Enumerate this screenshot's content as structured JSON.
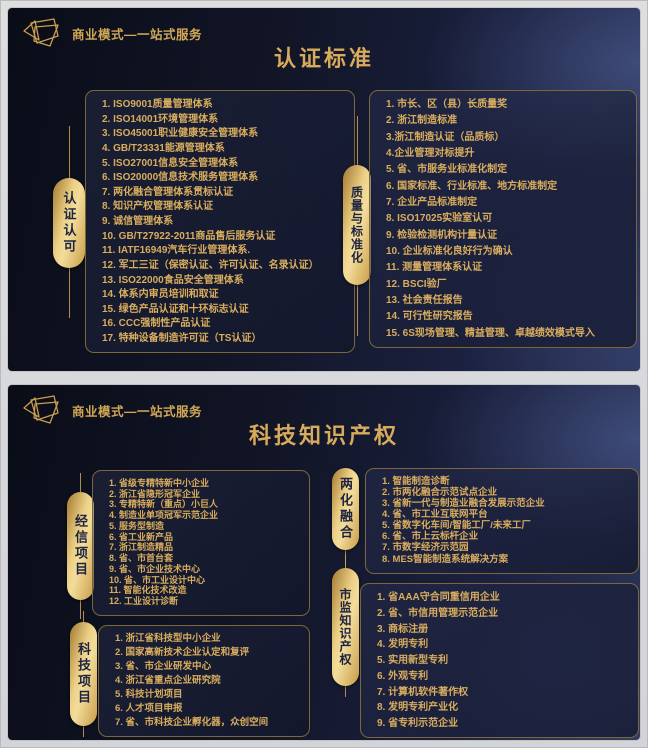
{
  "brand": {
    "label": "商业模式—一站式服务"
  },
  "colors": {
    "gold_accent": "#d9ad5e",
    "badge_gold": "#ecd086",
    "slide_navy": "#141a30",
    "badge_text": "#1d2340",
    "page_gray": "#d7d8db"
  },
  "icons": {
    "logo": "origami-gem-outline"
  },
  "slides": [
    {
      "title": "认证标准",
      "panels": [
        {
          "badge": "认证认可",
          "items": [
            "1. ISO9001质量管理体系",
            "2. ISO14001环境管理体系",
            "3. ISO45001职业健康安全管理体系",
            "4. GB/T23331能源管理体系",
            "5. ISO27001信息安全管理体系",
            "6. ISO20000信息技术服务管理体系",
            "7. 两化融合管理体系贯标认证",
            "8. 知识产权管理体系认证",
            "9. 诚信管理体系",
            "10. GB/T27922-2011商品售后服务认证",
            "11. IATF16949汽车行业管理体系.",
            "12. 军工三证（保密认证、许可认证、名录认证）",
            "13. ISO22000食品安全管理体系",
            "14. 体系内审员培训和取证",
            "15. 绿色产品认证和十环标志认证",
            "16. CCC强制性产品认证",
            "17. 特种设备制造许可证（TS认证）"
          ]
        },
        {
          "badge": "质量与标准化",
          "items": [
            "1. 市长、区（县）长质量奖",
            "2. 浙江制造标准",
            "3.浙江制造认证（品质标）",
            "4.企业管理对标提升",
            "5. 省、市服务业标准化制定",
            "6. 国家标准、行业标准、地方标准制定",
            "7. 企业产品标准制定",
            "8. ISO17025实验室认可",
            "9. 检验检测机构计量认证",
            "10. 企业标准化良好行为确认",
            "11. 测量管理体系认证",
            "12. BSCI验厂",
            "13. 社会责任报告",
            "14. 可行性研究报告",
            "15. 6S现场管理、精益管理、卓越绩效模式导入"
          ]
        }
      ]
    },
    {
      "title": "科技知识产权",
      "panels": [
        {
          "badge": "经信项目",
          "items": [
            "1. 省级专精特新中小企业",
            "2. 浙江省隐形冠军企业",
            "3. 专精特新（重点）小巨人",
            "4. 制造业单项冠军示范企业",
            "5. 服务型制造",
            "6. 省工业新产品",
            "7. 浙江制造精品",
            "8. 省、市首台套",
            "9. 省、市企业技术中心",
            "10. 省、市工业设计中心",
            "11. 智能化技术改造",
            "12. 工业设计诊断"
          ]
        },
        {
          "badge": "科技项目",
          "items": [
            "1. 浙江省科技型中小企业",
            "2. 国家高新技术企业认定和复评",
            "3. 省、市企业研发中心",
            "4. 浙江省重点企业研究院",
            "5. 科技计划项目",
            "6. 人才项目申报",
            "7. 省、市科技企业孵化器，众创空间"
          ]
        },
        {
          "badge": "两化融合",
          "items": [
            "1. 智能制造诊断",
            "2. 市两化融合示范试点企业",
            "3. 省新一代与制造业融合发展示范企业",
            "4. 省、市工业互联网平台",
            "5. 省数字化车间/智能工厂/未来工厂",
            "6. 省、市上云标杆企业",
            "7. 市数字经济示范园",
            "8. MES智能制造系统解决方案"
          ]
        },
        {
          "badge": "市监知识产权",
          "items": [
            "1. 省AAA守合同重信用企业",
            "2. 省、市信用管理示范企业",
            "3. 商标注册",
            "4. 发明专利",
            "5. 实用新型专利",
            "6. 外观专利",
            "7. 计算机软件著作权",
            "8. 发明专利产业化",
            "9. 省专利示范企业"
          ]
        }
      ]
    }
  ]
}
